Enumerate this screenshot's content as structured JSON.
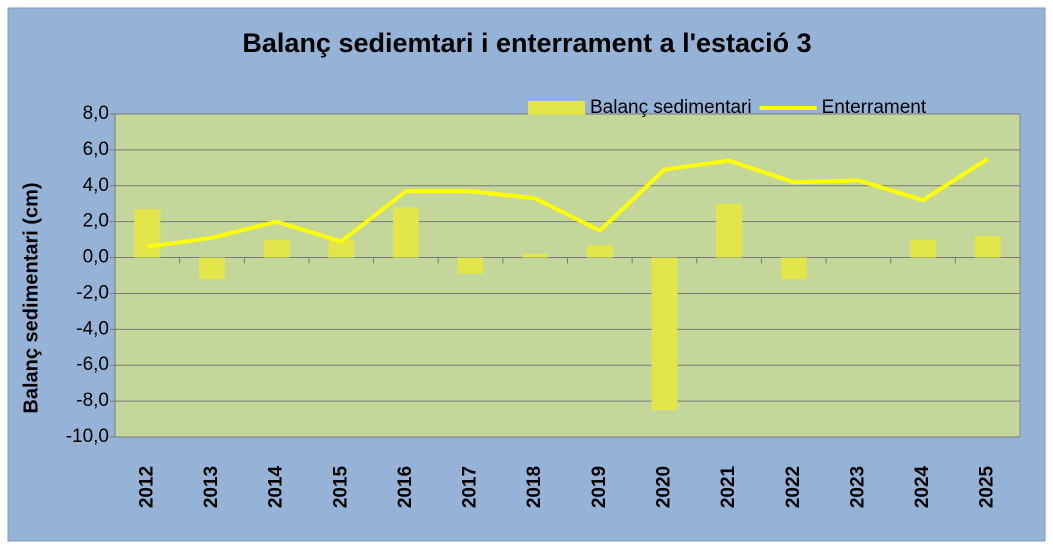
{
  "chart_data": {
    "type": "bar-line",
    "title": "Balanç sediemtari i enterrament a l'estació 3",
    "y_label": "Balanç sedimentari (cm)",
    "categories": [
      "2012",
      "2013",
      "2014",
      "2015",
      "2016",
      "2017",
      "2018",
      "2019",
      "2020",
      "2021",
      "2022",
      "2023",
      "2024",
      "2025"
    ],
    "series": [
      {
        "name": "Balanç sedimentari",
        "type": "bar",
        "color": "#e3e64a",
        "values": [
          2.7,
          -1.2,
          1.0,
          1.0,
          2.8,
          -0.9,
          0.2,
          0.7,
          -8.5,
          3.0,
          -1.2,
          0.0,
          1.0,
          1.2
        ]
      },
      {
        "name": "Enterrament",
        "type": "line",
        "color": "#ffff00",
        "values": [
          0.6,
          1.1,
          2.0,
          0.9,
          3.7,
          3.7,
          3.3,
          1.5,
          4.9,
          5.4,
          4.2,
          4.3,
          3.2,
          5.5
        ]
      }
    ],
    "ylim": [
      -10,
      8
    ],
    "yticks": [
      {
        "value": -10,
        "label": "-10,0"
      },
      {
        "value": -8,
        "label": "-8,0"
      },
      {
        "value": -6,
        "label": "-6,0"
      },
      {
        "value": -4,
        "label": "-4,0"
      },
      {
        "value": -2,
        "label": "-2,0"
      },
      {
        "value": 0,
        "label": "0,0"
      },
      {
        "value": 2,
        "label": "2,0"
      },
      {
        "value": 4,
        "label": "4,0"
      },
      {
        "value": 6,
        "label": "6,0"
      },
      {
        "value": 8,
        "label": "8,0"
      }
    ],
    "grid": true,
    "legend": "top-right"
  }
}
